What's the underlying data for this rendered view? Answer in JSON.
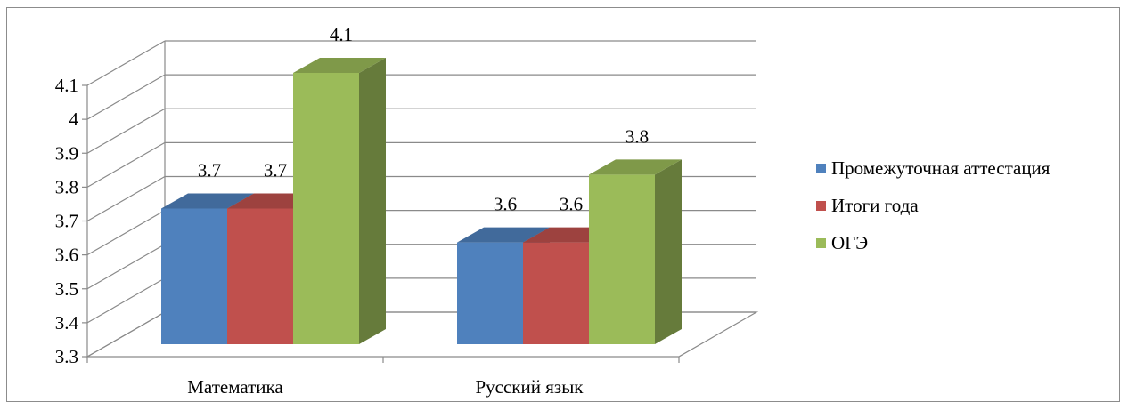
{
  "chart_data": {
    "type": "bar",
    "style": "3d-clustered-column",
    "categories": [
      "Математика",
      "Русский язык"
    ],
    "series": [
      {
        "name": "Промежуточная аттестация",
        "values": [
          3.7,
          3.6
        ],
        "color": "#4f81bd"
      },
      {
        "name": "Итоги года",
        "values": [
          3.7,
          3.6
        ],
        "color": "#c0504d"
      },
      {
        "name": "ОГЭ",
        "values": [
          4.1,
          3.8
        ],
        "color": "#9bbb59"
      }
    ],
    "data_labels": [
      {
        "category": "Математика",
        "series": "Промежуточная аттестация",
        "text": "3.7"
      },
      {
        "category": "Математика",
        "series": "Итоги года",
        "text": "3.7"
      },
      {
        "category": "Математика",
        "series": "ОГЭ",
        "text": "4.1"
      },
      {
        "category": "Русский язык",
        "series": "Промежуточная аттестация",
        "text": "3.6"
      },
      {
        "category": "Русский язык",
        "series": "Итоги года",
        "text": "3.6"
      },
      {
        "category": "Русский язык",
        "series": "ОГЭ",
        "text": "3.8"
      }
    ],
    "y_ticks": [
      "3.3",
      "3.4",
      "3.5",
      "3.6",
      "3.7",
      "3.8",
      "3.9",
      "4",
      "4.1"
    ],
    "ylim": [
      3.3,
      4.1
    ],
    "grid": true,
    "legend_position": "right",
    "title": "",
    "xlabel": "",
    "ylabel": ""
  }
}
